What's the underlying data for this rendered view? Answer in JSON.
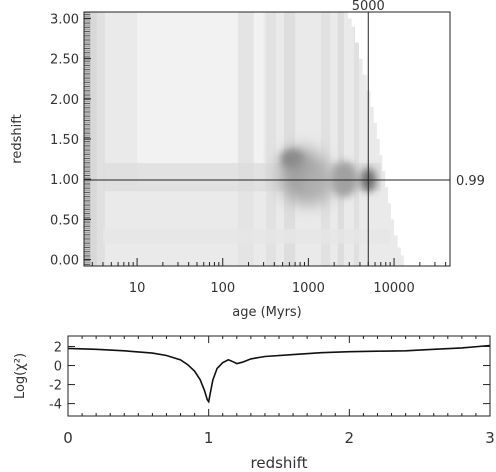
{
  "chart_data": [
    {
      "type": "heatmap",
      "xlabel": "age (Myrs)",
      "ylabel": "redshift",
      "x_scale": "log",
      "xlim": [
        2.4,
        45000
      ],
      "ylim": [
        -0.08,
        3.08
      ],
      "x_ticks": [
        10,
        100,
        1000,
        10000
      ],
      "x_tick_labels": [
        "10",
        "100",
        "1000",
        "10000"
      ],
      "y_ticks": [
        0.0,
        0.5,
        1.0,
        1.5,
        2.0,
        2.5,
        3.0
      ],
      "y_tick_labels": [
        "0.00",
        "0.50",
        "1.00",
        "1.50",
        "2.00",
        "2.50",
        "3.00"
      ],
      "crosshair": {
        "x": 5000,
        "y": 0.99,
        "x_label": "5000",
        "y_label": "0.99"
      },
      "colormap": "grayscale, darker = better fit",
      "minima": [
        {
          "x": 5000,
          "y": 0.99
        },
        {
          "x": 850,
          "y": 1.0
        },
        {
          "x": 2600,
          "y": 1.0
        },
        {
          "x": 650,
          "y": 1.25
        }
      ],
      "staircase_edge": [
        [
          3.0,
          2900
        ],
        [
          2.9,
          3200
        ],
        [
          2.7,
          3500
        ],
        [
          2.5,
          3900
        ],
        [
          2.3,
          4300
        ],
        [
          2.1,
          4800
        ],
        [
          1.9,
          5300
        ],
        [
          1.7,
          5800
        ],
        [
          1.5,
          6300
        ],
        [
          1.3,
          6800
        ],
        [
          1.1,
          7300
        ],
        [
          0.9,
          7900
        ],
        [
          0.7,
          8500
        ],
        [
          0.5,
          9200
        ],
        [
          0.3,
          10000
        ],
        [
          0.15,
          11000
        ],
        [
          0.05,
          12000
        ],
        [
          -0.08,
          13000
        ]
      ]
    },
    {
      "type": "line",
      "xlabel": "redshift",
      "ylabel": "Log(χ²)",
      "xlim": [
        0,
        3
      ],
      "ylim": [
        -5.3,
        3.1
      ],
      "x_ticks": [
        0,
        1,
        2,
        3
      ],
      "x_tick_labels": [
        "0",
        "1",
        "2",
        "3"
      ],
      "y_ticks": [
        2,
        0,
        -2,
        -4
      ],
      "y_tick_labels": [
        "2",
        "0",
        "-2",
        "-4"
      ],
      "x": [
        0.0,
        0.2,
        0.4,
        0.6,
        0.7,
        0.8,
        0.85,
        0.9,
        0.94,
        0.97,
        0.99,
        1.0,
        1.01,
        1.03,
        1.06,
        1.1,
        1.14,
        1.18,
        1.2,
        1.24,
        1.3,
        1.4,
        1.6,
        1.8,
        2.0,
        2.2,
        2.4,
        2.6,
        2.8,
        3.0
      ],
      "y": [
        1.8,
        1.7,
        1.55,
        1.3,
        1.05,
        0.6,
        0.1,
        -0.6,
        -1.5,
        -2.6,
        -3.6,
        -3.8,
        -3.0,
        -1.5,
        -0.3,
        0.3,
        0.6,
        0.35,
        0.2,
        0.35,
        0.7,
        0.95,
        1.15,
        1.35,
        1.45,
        1.5,
        1.55,
        1.7,
        1.85,
        2.1
      ]
    }
  ]
}
